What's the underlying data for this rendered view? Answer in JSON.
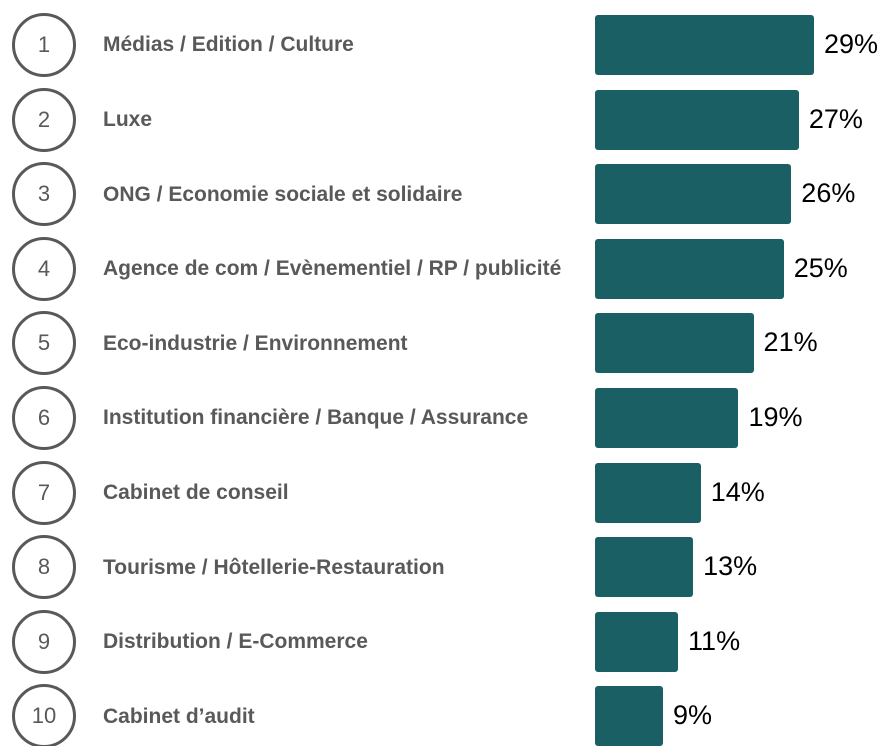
{
  "chart_data": {
    "type": "bar",
    "orientation": "horizontal",
    "color": "#1a5f63",
    "ranks": [
      1,
      2,
      3,
      4,
      5,
      6,
      7,
      8,
      9,
      10
    ],
    "categories": [
      "Médias / Edition / Culture",
      "Luxe",
      "ONG / Economie sociale et solidaire",
      "Agence de com / Evènementiel / RP / publicité",
      "Eco-industrie / Environnement",
      "Institution financière / Banque / Assurance",
      "Cabinet de conseil",
      "Tourisme / Hôtellerie-Restauration",
      "Distribution / E-Commerce",
      "Cabinet d’audit"
    ],
    "values": [
      29,
      27,
      26,
      25,
      21,
      19,
      14,
      13,
      11,
      9
    ],
    "value_labels": [
      "29%",
      "27%",
      "26%",
      "25%",
      "21%",
      "19%",
      "14%",
      "13%",
      "11%",
      "9%"
    ]
  }
}
